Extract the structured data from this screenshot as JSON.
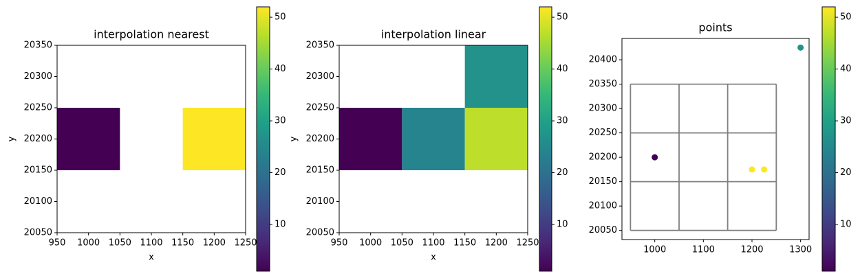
{
  "chart_data": [
    {
      "type": "heatmap",
      "title": "interpolation nearest",
      "xlabel": "x",
      "ylabel": "y",
      "colormap": "viridis",
      "x_edges": [
        950,
        1050,
        1150,
        1250
      ],
      "y_edges": [
        20050,
        20150,
        20250,
        20350
      ],
      "values": [
        [
          null,
          null,
          null
        ],
        [
          1,
          null,
          52
        ],
        [
          null,
          null,
          null
        ]
      ],
      "xlim": [
        950,
        1250
      ],
      "ylim": [
        20050,
        20350
      ],
      "xticks": [
        950,
        1000,
        1050,
        1100,
        1150,
        1200,
        1250
      ],
      "yticks": [
        20050,
        20100,
        20150,
        20200,
        20250,
        20300,
        20350
      ],
      "clim": [
        1,
        52
      ],
      "cticks": [
        10,
        20,
        30,
        40,
        50
      ]
    },
    {
      "type": "heatmap",
      "title": "interpolation linear",
      "xlabel": "x",
      "ylabel": "y",
      "colormap": "viridis",
      "x_edges": [
        950,
        1050,
        1150,
        1250
      ],
      "y_edges": [
        20050,
        20150,
        20250,
        20350
      ],
      "values": [
        [
          null,
          null,
          null
        ],
        [
          1,
          24,
          47
        ],
        [
          null,
          null,
          27
        ]
      ],
      "xlim": [
        950,
        1250
      ],
      "ylim": [
        20050,
        20350
      ],
      "xticks": [
        950,
        1000,
        1050,
        1100,
        1150,
        1200,
        1250
      ],
      "yticks": [
        20050,
        20100,
        20150,
        20200,
        20250,
        20300,
        20350
      ],
      "clim": [
        1,
        52
      ],
      "cticks": [
        10,
        20,
        30,
        40,
        50
      ]
    },
    {
      "type": "scatter",
      "title": "points",
      "colormap": "viridis",
      "x": [
        1000,
        1200,
        1225,
        1300
      ],
      "y": [
        20200,
        20175,
        20175,
        20425
      ],
      "c": [
        1,
        52,
        52,
        27
      ],
      "grid_lines": {
        "x": [
          950,
          1050,
          1150,
          1250
        ],
        "y": [
          20050,
          20150,
          20250,
          20350
        ],
        "color": "#808080"
      },
      "xlim": [
        932.5,
        1317.5
      ],
      "ylim": [
        20031.25,
        20443.75
      ],
      "xticks": [
        1000,
        1100,
        1200,
        1300
      ],
      "yticks": [
        20050,
        20100,
        20150,
        20200,
        20250,
        20300,
        20350,
        20400
      ],
      "clim": [
        1,
        52
      ],
      "cticks": [
        10,
        20,
        30,
        40,
        50
      ]
    }
  ]
}
